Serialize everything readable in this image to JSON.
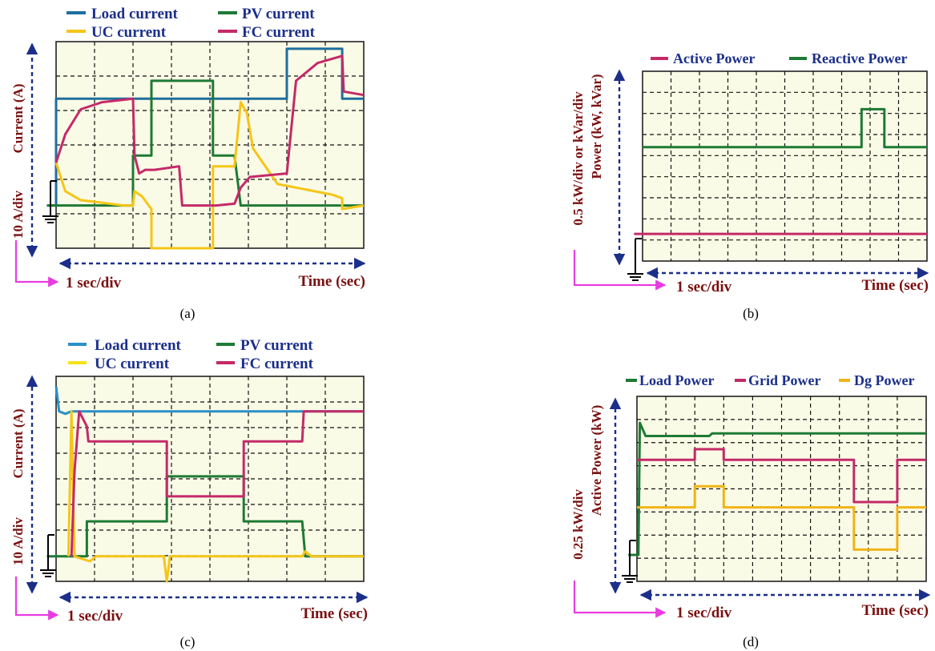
{
  "colors": {
    "load": "#1f6e9e",
    "load_c": "#2a90c8",
    "pv": "#1e7a34",
    "uc": "#f5c518",
    "fc": "#c42a68",
    "active": "#c42a68",
    "reactive": "#1e7a34",
    "dg": "#f0b418",
    "plot_bg": "#fafbe6",
    "axis_arrow": "#1b2f8a",
    "time_arrow": "#e83ce0"
  },
  "panels": {
    "a": {
      "caption": "(a)",
      "legend": [
        "Load current",
        "PV current",
        "UC current",
        "FC current"
      ],
      "ylabel_unit": "Current (A)",
      "ylabel_scale": "10 A/div",
      "xlabel_scale": "1 sec/div",
      "xlabel_unit": "Time (sec)"
    },
    "b": {
      "caption": "(b)",
      "legend": [
        "Active Power",
        "Reactive Power"
      ],
      "ylabel_scale": "0.5 kW/div or kVar/div",
      "ylabel_unit": "Power (kW, kVar)",
      "xlabel_scale": "1 sec/div",
      "xlabel_unit": "Time (sec)"
    },
    "c": {
      "caption": "(c)",
      "legend": [
        "Load current",
        "PV current",
        "UC current",
        "FC current"
      ],
      "ylabel_unit": "Current (A)",
      "ylabel_scale": "10 A/div",
      "xlabel_scale": "1 sec/div",
      "xlabel_unit": "Time (sec)"
    },
    "d": {
      "caption": "(d)",
      "legend": [
        "Load Power",
        "Grid Power",
        "Dg Power"
      ],
      "ylabel_scale": "0.25 kW/div",
      "ylabel_unit": "Active Power (kW)",
      "xlabel_scale": "1 sec/div",
      "xlabel_unit": "Time (sec)"
    }
  },
  "chart_data": [
    {
      "id": "a",
      "type": "line",
      "xlim": [
        0,
        10
      ],
      "ylim": [
        -1.2,
        4.6
      ],
      "series": [
        {
          "name": "Load current",
          "color_key": "load",
          "points": [
            [
              -0.3,
              0
            ],
            [
              0,
              0
            ],
            [
              0,
              3.0
            ],
            [
              7.5,
              3.0
            ],
            [
              7.5,
              4.4
            ],
            [
              9.3,
              4.4
            ],
            [
              9.3,
              3.0
            ],
            [
              10,
              3.0
            ]
          ]
        },
        {
          "name": "PV current",
          "color_key": "pv",
          "points": [
            [
              -0.3,
              0
            ],
            [
              0,
              0
            ],
            [
              2.5,
              0
            ],
            [
              2.5,
              1.4
            ],
            [
              3.1,
              1.4
            ],
            [
              3.1,
              3.5
            ],
            [
              5.1,
              3.5
            ],
            [
              5.1,
              1.4
            ],
            [
              5.8,
              1.4
            ],
            [
              6.0,
              0
            ],
            [
              10,
              0
            ]
          ]
        },
        {
          "name": "UC current",
          "color_key": "uc",
          "points": [
            [
              0,
              1.2
            ],
            [
              0.3,
              0.4
            ],
            [
              0.8,
              0.15
            ],
            [
              2.2,
              0
            ],
            [
              2.5,
              0
            ],
            [
              2.55,
              0.4
            ],
            [
              2.8,
              0.25
            ],
            [
              3.1,
              -0.1
            ],
            [
              3.1,
              -1.9
            ],
            [
              5.1,
              -1.7
            ],
            [
              5.1,
              1.1
            ],
            [
              5.8,
              1.1
            ],
            [
              6.0,
              2.9
            ],
            [
              6.2,
              2.6
            ],
            [
              6.4,
              1.6
            ],
            [
              7.2,
              0.6
            ],
            [
              9.0,
              0.3
            ],
            [
              9.3,
              0.2
            ],
            [
              9.3,
              -0.1
            ],
            [
              10,
              0
            ]
          ]
        },
        {
          "name": "FC current",
          "color_key": "fc",
          "points": [
            [
              0,
              1.2
            ],
            [
              0.3,
              2.0
            ],
            [
              0.8,
              2.7
            ],
            [
              1.5,
              2.9
            ],
            [
              2.5,
              3.0
            ],
            [
              2.55,
              1.4
            ],
            [
              2.7,
              0.9
            ],
            [
              2.9,
              1.0
            ],
            [
              3.2,
              1.0
            ],
            [
              4.0,
              1.1
            ],
            [
              4.1,
              0
            ],
            [
              5.1,
              0
            ],
            [
              5.2,
              0
            ],
            [
              5.8,
              0.05
            ],
            [
              6.0,
              0.5
            ],
            [
              6.3,
              0.8
            ],
            [
              7.5,
              0.9
            ],
            [
              7.8,
              3.5
            ],
            [
              8.5,
              4.0
            ],
            [
              9.3,
              4.2
            ],
            [
              9.35,
              3.2
            ],
            [
              10,
              3.1
            ]
          ]
        }
      ]
    },
    {
      "id": "b",
      "type": "line",
      "xlim": [
        0,
        10
      ],
      "ylim": [
        -0.5,
        3.0
      ],
      "series": [
        {
          "name": "Active Power",
          "color_key": "active",
          "points": [
            [
              -0.3,
              0
            ],
            [
              10,
              0
            ]
          ]
        },
        {
          "name": "Reactive Power",
          "color_key": "reactive",
          "points": [
            [
              0,
              1.6
            ],
            [
              7.7,
              1.6
            ],
            [
              7.7,
              2.3
            ],
            [
              8.5,
              2.3
            ],
            [
              8.5,
              1.6
            ],
            [
              10,
              1.6
            ]
          ]
        }
      ]
    },
    {
      "id": "c",
      "type": "line",
      "xlim": [
        0,
        10
      ],
      "ylim": [
        -0.5,
        3.6
      ],
      "series": [
        {
          "name": "Load current",
          "color_key": "load_c",
          "points": [
            [
              0,
              3.4
            ],
            [
              0.1,
              2.9
            ],
            [
              0.3,
              2.85
            ],
            [
              0.5,
              2.9
            ],
            [
              10,
              2.9
            ]
          ]
        },
        {
          "name": "PV current",
          "color_key": "pv",
          "points": [
            [
              -0.3,
              0
            ],
            [
              1.0,
              0
            ],
            [
              1.0,
              0.7
            ],
            [
              3.6,
              0.7
            ],
            [
              3.6,
              1.6
            ],
            [
              6.1,
              1.6
            ],
            [
              6.1,
              0.7
            ],
            [
              8.0,
              0.7
            ],
            [
              8.1,
              0
            ],
            [
              10,
              0
            ]
          ]
        },
        {
          "name": "UC current",
          "color_key": "uc",
          "points": [
            [
              0.4,
              0
            ],
            [
              0.5,
              2.9
            ],
            [
              0.6,
              0
            ],
            [
              1.1,
              -0.1
            ],
            [
              1.3,
              0
            ],
            [
              3.5,
              0
            ],
            [
              3.6,
              -0.8
            ],
            [
              3.7,
              0
            ],
            [
              8.0,
              0
            ],
            [
              8.1,
              0.1
            ],
            [
              8.3,
              0
            ],
            [
              10,
              0
            ]
          ]
        },
        {
          "name": "FC current",
          "color_key": "fc",
          "points": [
            [
              0.5,
              0
            ],
            [
              0.6,
              1.7
            ],
            [
              0.75,
              2.9
            ],
            [
              1.0,
              2.6
            ],
            [
              1.05,
              2.3
            ],
            [
              3.6,
              2.3
            ],
            [
              3.6,
              1.2
            ],
            [
              6.1,
              1.2
            ],
            [
              6.1,
              2.3
            ],
            [
              8.0,
              2.3
            ],
            [
              8.05,
              2.9
            ],
            [
              10,
              2.9
            ]
          ]
        }
      ]
    },
    {
      "id": "d",
      "type": "line",
      "xlim": [
        0,
        10
      ],
      "ylim": [
        -0.5,
        3.0
      ],
      "series": [
        {
          "name": "Load Power",
          "color_key": "pv",
          "points": [
            [
              -0.3,
              0
            ],
            [
              0.05,
              0
            ],
            [
              0.1,
              2.5
            ],
            [
              0.3,
              2.25
            ],
            [
              2.5,
              2.25
            ],
            [
              2.6,
              2.3
            ],
            [
              7.5,
              2.3
            ],
            [
              7.6,
              2.3
            ],
            [
              10,
              2.3
            ]
          ]
        },
        {
          "name": "Grid Power",
          "color_key": "fc",
          "points": [
            [
              0,
              1.8
            ],
            [
              2.0,
              1.8
            ],
            [
              2.0,
              2.0
            ],
            [
              3.0,
              2.0
            ],
            [
              3.0,
              1.8
            ],
            [
              7.5,
              1.8
            ],
            [
              7.5,
              1.0
            ],
            [
              9.0,
              1.0
            ],
            [
              9.0,
              1.8
            ],
            [
              10,
              1.8
            ]
          ]
        },
        {
          "name": "Dg Power",
          "color_key": "dg",
          "points": [
            [
              0,
              0.9
            ],
            [
              2.0,
              0.9
            ],
            [
              2.0,
              1.3
            ],
            [
              3.0,
              1.3
            ],
            [
              3.0,
              0.9
            ],
            [
              7.5,
              0.9
            ],
            [
              7.5,
              0.1
            ],
            [
              9.0,
              0.1
            ],
            [
              9.0,
              0.9
            ],
            [
              10,
              0.9
            ]
          ]
        }
      ]
    }
  ]
}
